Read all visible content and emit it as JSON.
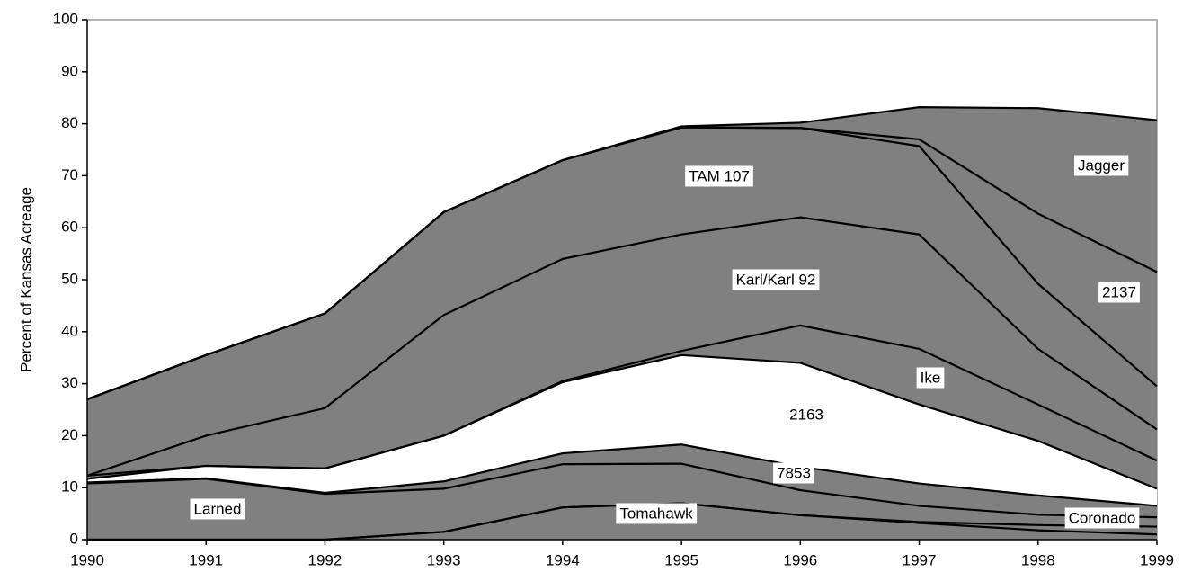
{
  "chart_data": {
    "type": "stacked-area",
    "y_label": "Percent of Kansas Acreage",
    "x": [
      1990,
      1991,
      1992,
      1993,
      1994,
      1995,
      1996,
      1997,
      1998,
      1999
    ],
    "xlim": [
      1990,
      1999
    ],
    "xticks": [
      1990,
      1991,
      1992,
      1993,
      1994,
      1995,
      1996,
      1997,
      1998,
      1999
    ],
    "ylim": [
      0,
      100
    ],
    "yticks": [
      0,
      10,
      20,
      30,
      40,
      50,
      60,
      70,
      80,
      90,
      100
    ],
    "line_color": "#000000",
    "series": [
      {
        "name": "Tomahawk",
        "color": "#808080",
        "values": [
          0,
          0,
          0,
          1.5,
          6.2,
          7,
          4.7,
          3.2,
          1.8,
          1
        ]
      },
      {
        "name": "Coronado",
        "color": "#808080",
        "values": [
          0,
          0,
          0,
          0,
          0,
          0,
          0,
          0.2,
          1,
          1.5
        ]
      },
      {
        "name": "Larned",
        "color": "#808080",
        "values": [
          10.8,
          11.7,
          8.8,
          8.3,
          8.3,
          7.6,
          4.8,
          3.1,
          2,
          1.8
        ]
      },
      {
        "name": "7853",
        "color": "#808080",
        "values": [
          0.2,
          0.1,
          0.2,
          1.4,
          2.1,
          3.7,
          4.5,
          4.3,
          3.7,
          2.2
        ]
      },
      {
        "name": "2163",
        "color": "#ffffff",
        "values": [
          0.7,
          2.4,
          4.7,
          8.8,
          13.7,
          17.2,
          20,
          15.2,
          10.5,
          3.3
        ]
      },
      {
        "name": "Ike",
        "color": "#808080",
        "values": [
          0.6,
          0,
          0,
          0,
          0.2,
          0.8,
          7.2,
          10.7,
          7,
          5.4
        ]
      },
      {
        "name": "Karl/Karl 92",
        "color": "#808080",
        "values": [
          0,
          5.8,
          11.6,
          23.2,
          23.5,
          22.4,
          20.8,
          22,
          10.7,
          6
        ]
      },
      {
        "name": "TAM 107",
        "color": "#808080",
        "values": [
          14.7,
          15.5,
          18.2,
          19.8,
          19,
          20.6,
          17.2,
          17,
          12.5,
          8.3
        ]
      },
      {
        "name": "2137",
        "color": "#808080",
        "values": [
          0,
          0,
          0,
          0,
          0,
          0,
          0,
          1.3,
          13.5,
          22
        ]
      },
      {
        "name": "Jagger",
        "color": "#808080",
        "values": [
          0,
          0,
          0,
          0,
          0,
          0.2,
          1,
          6.2,
          20.3,
          29.2
        ]
      }
    ]
  }
}
